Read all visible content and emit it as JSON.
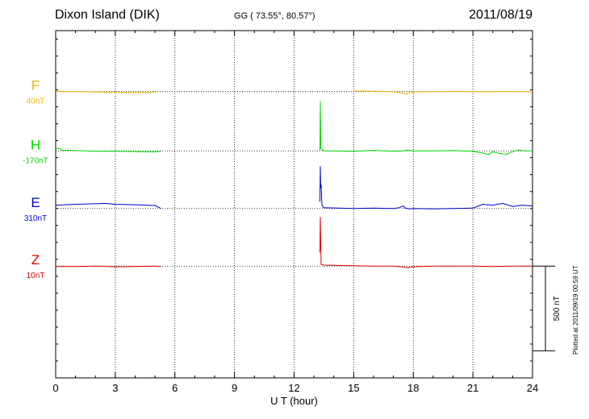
{
  "header": {
    "station": "Dixon Island (DIK)",
    "coords": "GG ( 73.55°,  80.57°)",
    "date": "2011/08/19"
  },
  "footer": {
    "plotted": "Plotted at 2011/09/19 00:59 UT"
  },
  "chart_data": {
    "type": "line",
    "title": "Dixon Island (DIK)",
    "xlabel": "U T (hour)",
    "xlim": [
      0,
      24
    ],
    "xticks": [
      0,
      3,
      6,
      9,
      12,
      15,
      18,
      21,
      24
    ],
    "ylim": [
      -1040,
      1010
    ],
    "grid": true,
    "scale_bar": {
      "label": "500 nT",
      "value": 500
    },
    "series": [
      {
        "name": "F",
        "baseline_label": "40nT",
        "baseline": 650,
        "color": "#f0b400",
        "x": [
          0,
          1,
          2,
          3,
          4,
          5,
          13.5,
          15,
          16,
          17,
          17.4,
          17.6,
          17.8,
          18,
          19,
          20,
          21,
          22,
          22.5,
          23,
          24
        ],
        "y": [
          652,
          650,
          648,
          645,
          644,
          646,
          null,
          654,
          652,
          650,
          642,
          635,
          642,
          648,
          650,
          651,
          650,
          649,
          651,
          650,
          650
        ]
      },
      {
        "name": "H",
        "baseline_label": "-170nT",
        "baseline": 300,
        "color": "#00dc00",
        "x": [
          0,
          0.2,
          0.3,
          1,
          2,
          3,
          4,
          5,
          5.3,
          13.3,
          13.3,
          13.32,
          13.35,
          13.5,
          15,
          16,
          17,
          17.5,
          17.7,
          18,
          19,
          20,
          21,
          21.6,
          21.8,
          22,
          22.3,
          22.7,
          23,
          23.3,
          23.6,
          24
        ],
        "y": [
          315,
          314,
          305,
          302,
          298,
          298,
          296,
          294,
          298,
          null,
          300,
          595,
          315,
          300,
          298,
          303,
          298,
          300,
          305,
          300,
          300,
          302,
          298,
          285,
          278,
          295,
          285,
          280,
          295,
          306,
          300,
          300
        ],
        "note": "x=13.3 carries an intentional gap (null) in the data, then the spike."
      },
      {
        "name": "E",
        "baseline_label": "310nT",
        "baseline": -40,
        "color": "#0000cc",
        "x": [
          0,
          1,
          2,
          2.5,
          3,
          4,
          5,
          5.3,
          13.3,
          13.3,
          13.32,
          13.34,
          13.36,
          13.4,
          13.5,
          15,
          16,
          17,
          17.3,
          17.5,
          17.6,
          17.8,
          18,
          19,
          20,
          21,
          21.3,
          21.5,
          22,
          22.5,
          23,
          23.5,
          24
        ],
        "y": [
          -20,
          -15,
          -12,
          -10,
          -15,
          -18,
          -22,
          -40,
          null,
          0,
          210,
          80,
          100,
          -20,
          -35,
          -40,
          -38,
          -40,
          -35,
          -25,
          -38,
          -42,
          -40,
          -42,
          -40,
          -38,
          -25,
          -15,
          -20,
          -10,
          -28,
          -20,
          -25
        ]
      },
      {
        "name": "Z",
        "baseline_label": "10nT",
        "baseline": -380,
        "color": "#e00000",
        "x": [
          0,
          1,
          2,
          3,
          4,
          5,
          5.3,
          13.3,
          13.3,
          13.32,
          13.36,
          13.5,
          15,
          16,
          17,
          17.5,
          17.7,
          18,
          19,
          20,
          21,
          22,
          23,
          24
        ],
        "y": [
          -382,
          -382,
          -380,
          -384,
          -382,
          -380,
          -382,
          null,
          -300,
          -90,
          -370,
          -374,
          -378,
          -380,
          -380,
          -385,
          -390,
          -384,
          -380,
          -380,
          -380,
          -382,
          -380,
          -380
        ]
      }
    ]
  }
}
